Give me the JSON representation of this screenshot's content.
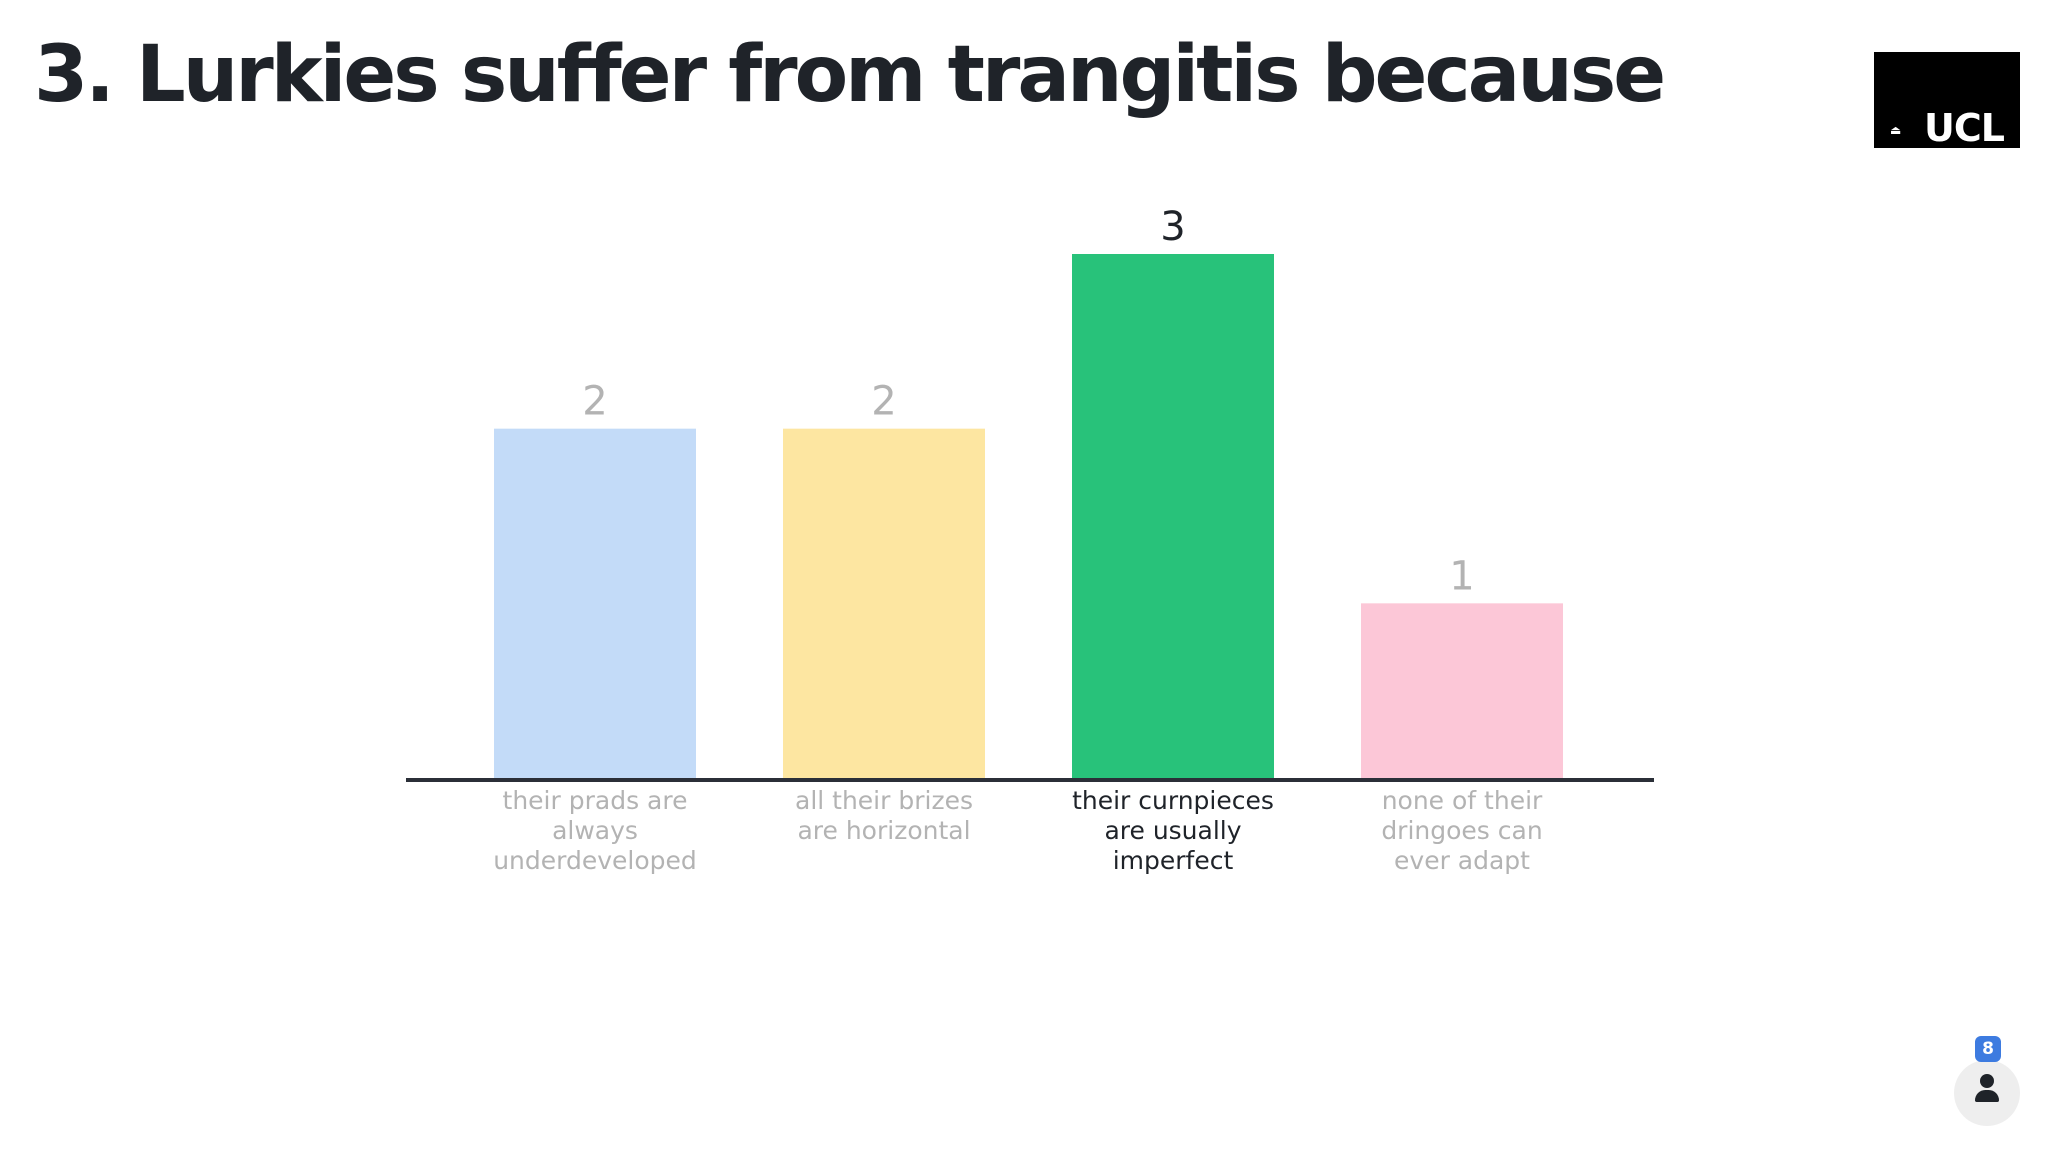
{
  "title": "3. Lurkies suffer from trangitis because",
  "logo": {
    "text": "UCL",
    "mark": "⏏"
  },
  "participants": {
    "count": "8",
    "icon": "person-icon"
  },
  "colors": {
    "axis": "#2b2f38",
    "label_muted": "#b3b3b3",
    "label_active": "#1f2329"
  },
  "chart_data": {
    "type": "bar",
    "title": "",
    "xlabel": "",
    "ylabel": "",
    "ylim": [
      0,
      3
    ],
    "categories": [
      {
        "lines": [
          "their prads are",
          "always",
          "underdeveloped"
        ],
        "active": false
      },
      {
        "lines": [
          "all their brizes",
          "are horizontal"
        ],
        "active": false
      },
      {
        "lines": [
          "their curnpieces",
          "are usually",
          "imperfect"
        ],
        "active": true
      },
      {
        "lines": [
          "none of their",
          "dringoes can",
          "ever adapt"
        ],
        "active": false
      }
    ],
    "values": [
      2,
      2,
      3,
      1
    ],
    "colors": [
      "#c3dbf8",
      "#fde6a1",
      "#28c27a",
      "#fcc7d7"
    ]
  }
}
